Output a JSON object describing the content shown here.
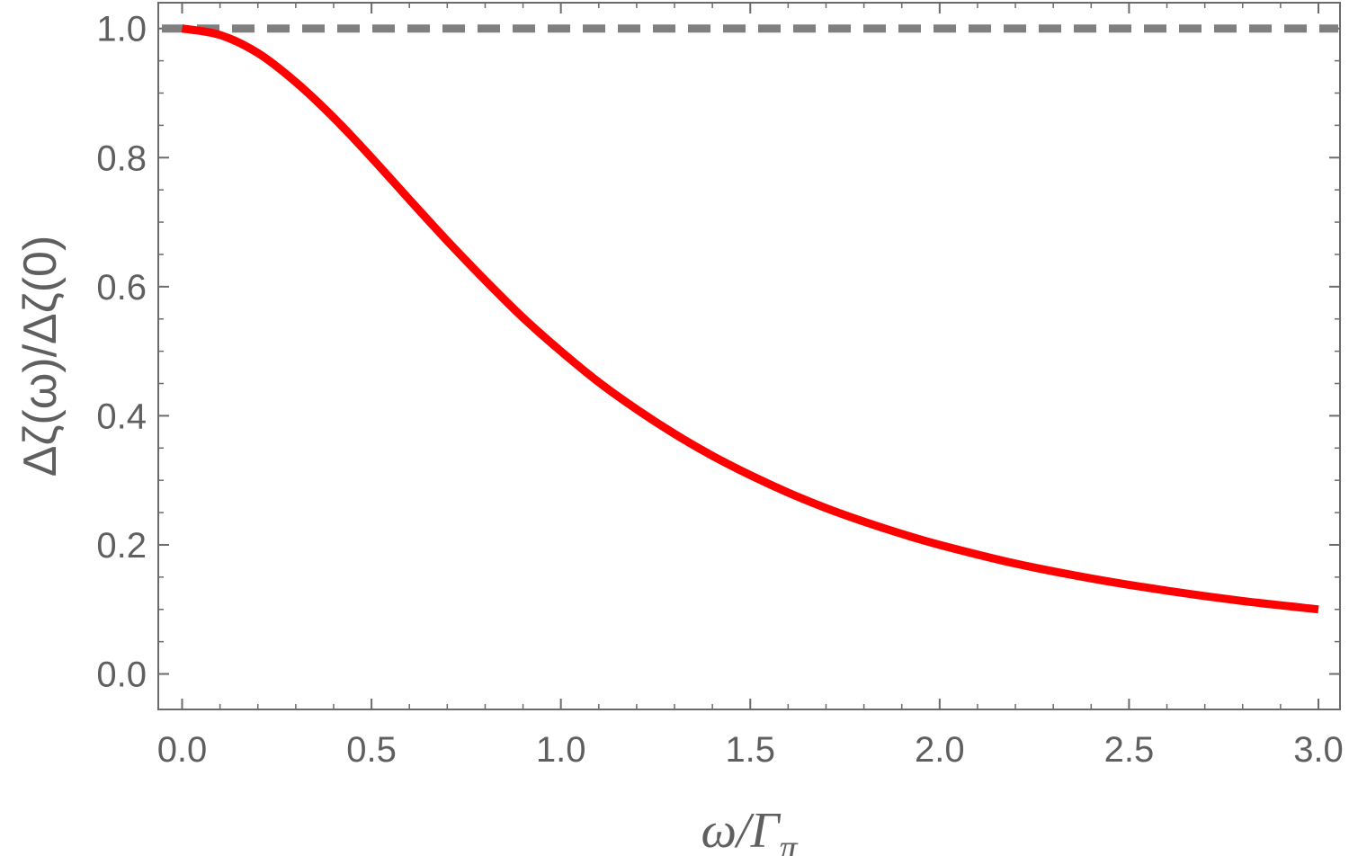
{
  "chart_data": {
    "type": "line",
    "title": "",
    "xlabel": "ω/Γπ",
    "ylabel": "Δζ(ω)/Δζ(0)",
    "xlabel_parts": {
      "main": "ω/Γ",
      "sub": "π"
    },
    "xlim": [
      0,
      3
    ],
    "ylim": [
      -0.055,
      1.04
    ],
    "x_ticks": [
      0.0,
      0.5,
      1.0,
      1.5,
      2.0,
      2.5,
      3.0
    ],
    "x_tick_labels": [
      "0.0",
      "0.5",
      "1.0",
      "1.5",
      "2.0",
      "2.5",
      "3.0"
    ],
    "y_ticks": [
      0.0,
      0.2,
      0.4,
      0.6,
      0.8,
      1.0
    ],
    "y_tick_labels": [
      "0.0",
      "0.2",
      "0.4",
      "0.6",
      "0.8",
      "1.0"
    ],
    "grid": false,
    "legend": "none",
    "series": [
      {
        "style": "solid",
        "color": "#ff0000",
        "x": [
          0.0,
          0.1,
          0.2,
          0.3,
          0.4,
          0.5,
          0.6,
          0.7,
          0.8,
          0.9,
          1.0,
          1.1,
          1.2,
          1.3,
          1.4,
          1.5,
          1.6,
          1.7,
          1.8,
          1.9,
          2.0,
          2.2,
          2.4,
          2.6,
          2.8,
          3.0
        ],
        "values": [
          1.0,
          0.99,
          0.962,
          0.917,
          0.862,
          0.8,
          0.735,
          0.671,
          0.61,
          0.552,
          0.5,
          0.452,
          0.41,
          0.372,
          0.338,
          0.308,
          0.281,
          0.257,
          0.236,
          0.217,
          0.2,
          0.171,
          0.148,
          0.129,
          0.113,
          0.1
        ]
      },
      {
        "style": "dashed",
        "color": "#7f7f7f",
        "x": [
          -0.06,
          3.06
        ],
        "values": [
          1.0,
          1.0
        ]
      }
    ]
  }
}
